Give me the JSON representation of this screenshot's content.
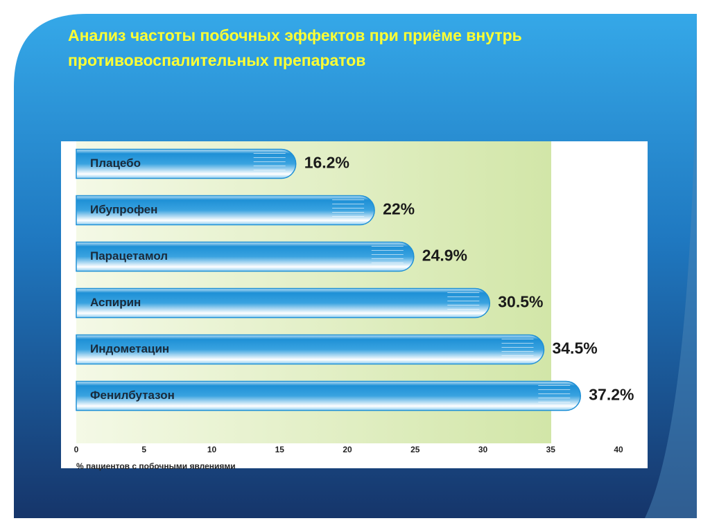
{
  "chart_data": {
    "type": "bar",
    "orientation": "horizontal",
    "title": "Анализ частоты побочных эффектов при приёме внутрь противовоспалительных препаратов",
    "x_label": "% пациентов с побочными явлениями",
    "categories": [
      "Плацебо",
      "Ибупрофен",
      "Парацетамол",
      "Аспирин",
      "Индометацин",
      "Фенилбутазон"
    ],
    "values": [
      16.2,
      22,
      24.9,
      30.5,
      34.5,
      37.2
    ],
    "value_labels": [
      "16.2%",
      "22%",
      "24.9%",
      "30.5%",
      "34.5%",
      "37.2%"
    ],
    "color": "#1e90d6",
    "xlim": [
      0,
      40
    ],
    "xticks": [
      0,
      5,
      10,
      15,
      20,
      25,
      30,
      35,
      40
    ]
  }
}
